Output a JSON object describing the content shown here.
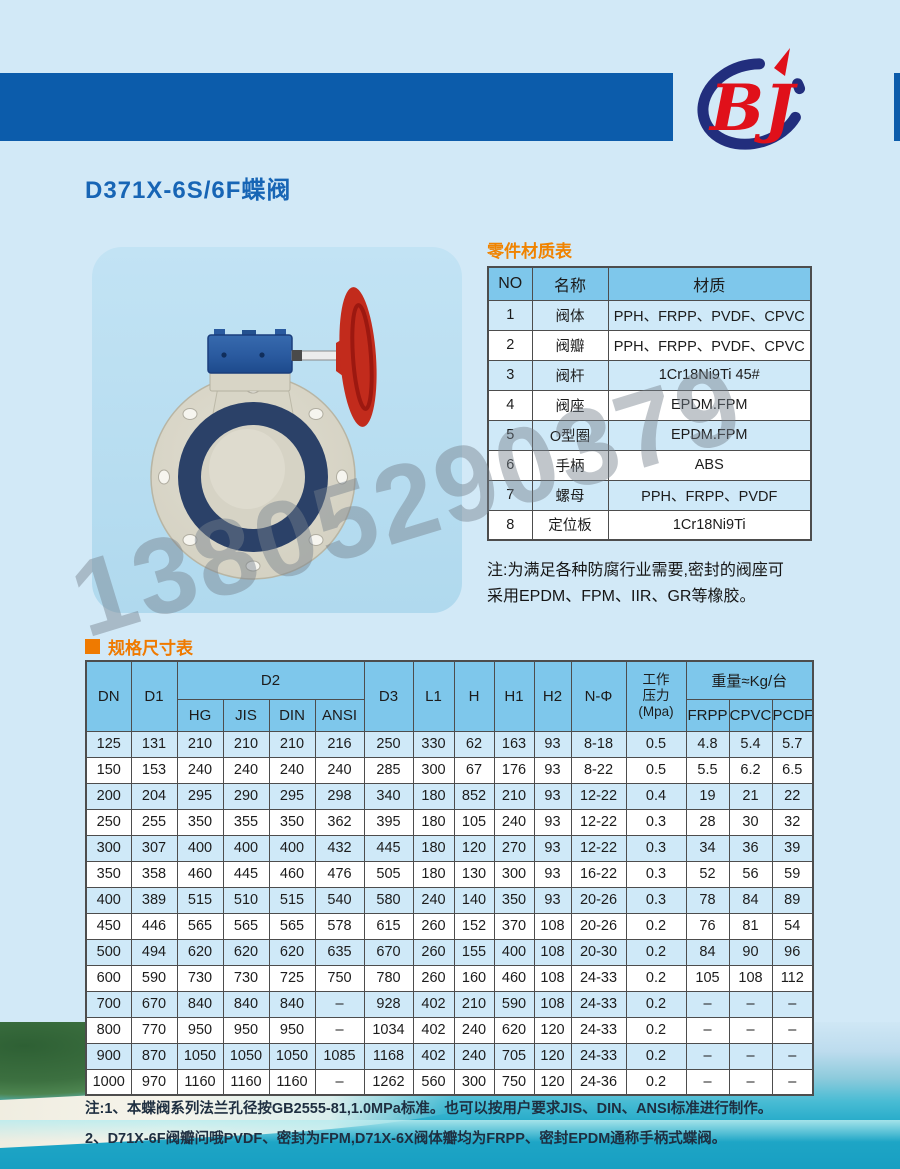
{
  "page": {
    "title": "D371X-6S/6F蝶阀",
    "logo_text": "BJ",
    "watermark_number": "13805290379",
    "colors": {
      "header_bar": "#0c5cab",
      "accent_orange": "#ef7a00",
      "table_header_blue": "#7ec7eb",
      "row_light_blue": "#cfe9f8",
      "title_blue": "#1765b5",
      "logo_red": "#e0101a",
      "logo_navy": "#222e7d"
    }
  },
  "materials_section": {
    "heading": "零件材质表",
    "table": {
      "headers": [
        "NO",
        "名称",
        "材质"
      ],
      "rows": [
        [
          "1",
          "阀体",
          "PPH、FRPP、PVDF、CPVC"
        ],
        [
          "2",
          "阀瓣",
          "PPH、FRPP、PVDF、CPVC"
        ],
        [
          "3",
          "阀杆",
          "1Cr18Ni9Ti 45#"
        ],
        [
          "4",
          "阀座",
          "EPDM.FPM"
        ],
        [
          "5",
          "O型圈",
          "EPDM.FPM"
        ],
        [
          "6",
          "手柄",
          "ABS"
        ],
        [
          "7",
          "螺母",
          "PPH、FRPP、PVDF"
        ],
        [
          "8",
          "定位板",
          "1Cr18Ni9Ti"
        ]
      ]
    },
    "note_line1": "注:为满足各种防腐行业需要,密封的阀座可",
    "note_line2": "采用EPDM、FPM、IIR、GR等橡胶。"
  },
  "spec_section": {
    "heading": "规格尺寸表",
    "table": {
      "top": {
        "dn": "DN",
        "d1": "D1",
        "d2_group": "D2",
        "d3": "D3",
        "l1": "L1",
        "h": "H",
        "h1": "H1",
        "h2": "H2",
        "nphi": "N-Φ",
        "pressure": "工作\n压力\n(Mpa)",
        "weight_group": "重量≈Kg/台"
      },
      "d2_subs": [
        "HG",
        "JIS",
        "DIN",
        "ANSI"
      ],
      "weight_subs": [
        "FRPP",
        "CPVC",
        "PCDF"
      ],
      "rows": [
        [
          "125",
          "131",
          "210",
          "210",
          "210",
          "216",
          "250",
          "330",
          "62",
          "163",
          "93",
          "8-18",
          "0.5",
          "4.8",
          "5.4",
          "5.7"
        ],
        [
          "150",
          "153",
          "240",
          "240",
          "240",
          "240",
          "285",
          "300",
          "67",
          "176",
          "93",
          "8-22",
          "0.5",
          "5.5",
          "6.2",
          "6.5"
        ],
        [
          "200",
          "204",
          "295",
          "290",
          "295",
          "298",
          "340",
          "180",
          "852",
          "210",
          "93",
          "12-22",
          "0.4",
          "19",
          "21",
          "22"
        ],
        [
          "250",
          "255",
          "350",
          "355",
          "350",
          "362",
          "395",
          "180",
          "105",
          "240",
          "93",
          "12-22",
          "0.3",
          "28",
          "30",
          "32"
        ],
        [
          "300",
          "307",
          "400",
          "400",
          "400",
          "432",
          "445",
          "180",
          "120",
          "270",
          "93",
          "12-22",
          "0.3",
          "34",
          "36",
          "39"
        ],
        [
          "350",
          "358",
          "460",
          "445",
          "460",
          "476",
          "505",
          "180",
          "130",
          "300",
          "93",
          "16-22",
          "0.3",
          "52",
          "56",
          "59"
        ],
        [
          "400",
          "389",
          "515",
          "510",
          "515",
          "540",
          "580",
          "240",
          "140",
          "350",
          "93",
          "20-26",
          "0.3",
          "78",
          "84",
          "89"
        ],
        [
          "450",
          "446",
          "565",
          "565",
          "565",
          "578",
          "615",
          "260",
          "152",
          "370",
          "108",
          "20-26",
          "0.2",
          "76",
          "81",
          "54"
        ],
        [
          "500",
          "494",
          "620",
          "620",
          "620",
          "635",
          "670",
          "260",
          "155",
          "400",
          "108",
          "20-30",
          "0.2",
          "84",
          "90",
          "96"
        ],
        [
          "600",
          "590",
          "730",
          "730",
          "725",
          "750",
          "780",
          "260",
          "160",
          "460",
          "108",
          "24-33",
          "0.2",
          "105",
          "108",
          "112"
        ],
        [
          "700",
          "670",
          "840",
          "840",
          "840",
          "–",
          "928",
          "402",
          "210",
          "590",
          "108",
          "24-33",
          "0.2",
          "–",
          "–",
          "–"
        ],
        [
          "800",
          "770",
          "950",
          "950",
          "950",
          "–",
          "1034",
          "402",
          "240",
          "620",
          "120",
          "24-33",
          "0.2",
          "–",
          "–",
          "–"
        ],
        [
          "900",
          "870",
          "1050",
          "1050",
          "1050",
          "1085",
          "1168",
          "402",
          "240",
          "705",
          "120",
          "24-33",
          "0.2",
          "–",
          "–",
          "–"
        ],
        [
          "1000",
          "970",
          "1160",
          "1160",
          "1160",
          "–",
          "1262",
          "560",
          "300",
          "750",
          "120",
          "24-36",
          "0.2",
          "–",
          "–",
          "–"
        ]
      ]
    }
  },
  "footer_notes": {
    "line1": "注:1、本蝶阀系列法兰孔径按GB2555-81,1.0MPa标准。也可以按用户要求JIS、DIN、ANSI标准进行制作。",
    "line2": "2、D71X-6F阀瓣问哦PVDF、密封为FPM,D71X-6X阀体瓣均为FRPP、密封EPDM通称手柄式蝶阀。"
  }
}
